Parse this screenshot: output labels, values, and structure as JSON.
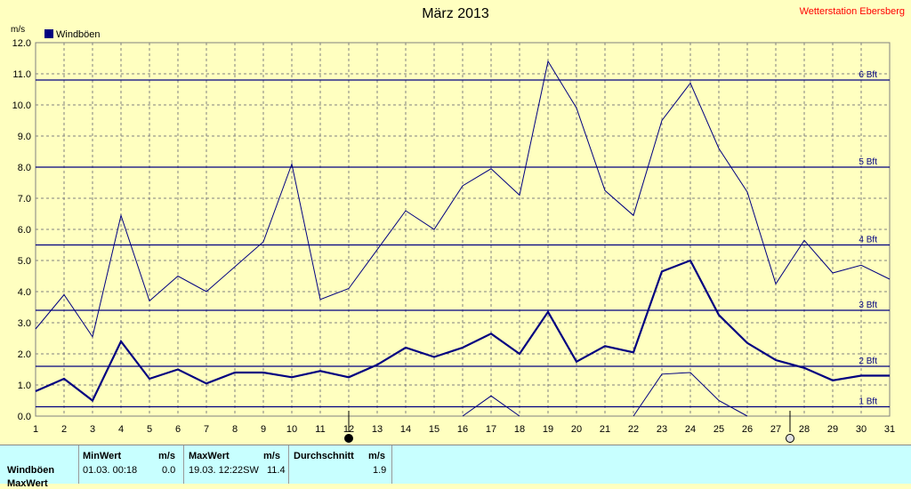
{
  "title": "März 2013",
  "station": "Wetterstation Ebersberg",
  "y_unit": "m/s",
  "legend_label": "Windböen",
  "colors": {
    "background": "#ffffc0",
    "series": "#000080",
    "grid": "#808080",
    "station": "#ff0000",
    "stats_bg": "#c8ffff"
  },
  "chart_data": {
    "type": "line",
    "title": "März 2013",
    "xlabel": "",
    "ylabel": "m/s",
    "x": [
      1,
      2,
      3,
      4,
      5,
      6,
      7,
      8,
      9,
      10,
      11,
      12,
      13,
      14,
      15,
      16,
      17,
      18,
      19,
      20,
      21,
      22,
      23,
      24,
      25,
      26,
      27,
      28,
      29,
      30,
      31
    ],
    "xlim": [
      1,
      31
    ],
    "ylim": [
      0,
      12
    ],
    "y_ticks": [
      "0.0",
      "1.0",
      "2.0",
      "3.0",
      "4.0",
      "5.0",
      "6.0",
      "7.0",
      "8.0",
      "9.0",
      "10.0",
      "11.0",
      "12.0"
    ],
    "x_ticks": [
      "1",
      "2",
      "3",
      "4",
      "5",
      "6",
      "7",
      "8",
      "9",
      "10",
      "11",
      "12",
      "13",
      "14",
      "15",
      "16",
      "17",
      "18",
      "19",
      "20",
      "21",
      "22",
      "23",
      "24",
      "25",
      "26",
      "27",
      "28",
      "29",
      "30",
      "31"
    ],
    "grid": true,
    "legend": "top-left",
    "series": [
      {
        "name": "Windböen",
        "values": [
          0.8,
          1.2,
          0.5,
          2.4,
          1.2,
          1.5,
          1.05,
          1.4,
          1.4,
          1.25,
          1.45,
          1.25,
          1.65,
          2.2,
          1.9,
          2.2,
          2.65,
          2.0,
          3.35,
          1.75,
          2.25,
          2.05,
          4.65,
          5.0,
          3.25,
          2.35,
          1.8,
          1.55,
          1.15,
          1.3,
          1.3
        ]
      },
      {
        "values": [
          2.8,
          3.9,
          2.55,
          6.45,
          3.7,
          4.5,
          4.0,
          4.8,
          5.6,
          8.1,
          3.75,
          4.1,
          5.35,
          6.6,
          6.0,
          7.4,
          7.95,
          7.1,
          11.4,
          9.9,
          7.25,
          6.45,
          9.5,
          10.7,
          8.6,
          7.2,
          4.25,
          5.65,
          4.6,
          4.85,
          4.4
        ]
      },
      {
        "values": [
          null,
          null,
          null,
          null,
          null,
          null,
          null,
          null,
          null,
          null,
          null,
          null,
          null,
          null,
          null,
          0.0,
          0.65,
          0.0,
          null,
          null,
          null,
          0.0,
          1.35,
          1.4,
          0.5,
          0.0,
          null,
          null,
          null,
          null,
          null
        ]
      }
    ],
    "reference_lines": [
      {
        "label": "1 Bft",
        "value": 0.3
      },
      {
        "label": "2 Bft",
        "value": 1.6
      },
      {
        "label": "3 Bft",
        "value": 3.4
      },
      {
        "label": "4 Bft",
        "value": 5.5
      },
      {
        "label": "5 Bft",
        "value": 8.0
      },
      {
        "label": "6 Bft",
        "value": 10.8
      }
    ],
    "markers": [
      {
        "x": 12,
        "type": "new-moon"
      },
      {
        "x": 27.5,
        "type": "full-moon"
      }
    ]
  },
  "stats": {
    "row_label": "Windböen",
    "row2_label": "MaxWert",
    "min": {
      "header": "MinWert",
      "unit": "m/s",
      "date": "01.03.  00:18",
      "value": "0.0"
    },
    "max": {
      "header": "MaxWert",
      "unit": "m/s",
      "date": "19.03.  12:22SW",
      "value": "11.4"
    },
    "avg": {
      "header": "Durchschnitt",
      "unit": "m/s",
      "value": "1.9"
    }
  }
}
